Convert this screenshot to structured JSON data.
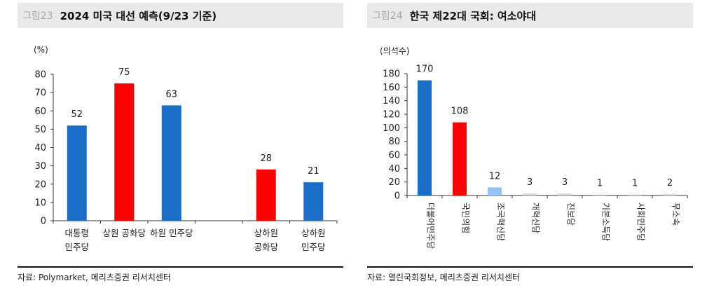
{
  "figures": [
    {
      "number": "그림23",
      "title": "2024 미국 대선 예측(9/23 기준)",
      "unit": "(%)",
      "source": "자료: Polymarket, 메리츠증권 리서치센터"
    },
    {
      "number": "그림24",
      "title": "한국 제22대 국회: 여소야대",
      "unit": "(의석수)",
      "source": "자료: 열린국회정보, 메리츠증권 리서치센터"
    }
  ],
  "chart_data": [
    {
      "type": "bar",
      "title": "2024 미국 대선 예측(9/23 기준)",
      "ylabel": "(%)",
      "xlabel": "",
      "ylim": [
        0,
        80
      ],
      "yticks": [
        0,
        10,
        20,
        30,
        40,
        50,
        60,
        70,
        80
      ],
      "grid": false,
      "legend": null,
      "categories": [
        "대통령 민주당",
        "상원 공화당",
        "하원 민주당",
        "",
        "상하원 공화당",
        "상하원 민주당"
      ],
      "category_lines": [
        [
          "대통령",
          "민주당"
        ],
        [
          "상원 공화당"
        ],
        [
          "하원 민주당"
        ],
        [
          ""
        ],
        [
          "상하원",
          "공화당"
        ],
        [
          "상하원",
          "민주당"
        ]
      ],
      "values": [
        52,
        75,
        63,
        null,
        28,
        21
      ],
      "colors": [
        "#1a6ec8",
        "#ff0000",
        "#1a6ec8",
        null,
        "#ff0000",
        "#1a6ec8"
      ],
      "data_labels": true
    },
    {
      "type": "bar",
      "title": "한국 제22대 국회: 여소야대",
      "ylabel": "(의석수)",
      "xlabel": "",
      "ylim": [
        0,
        180
      ],
      "yticks": [
        0,
        20,
        40,
        60,
        80,
        100,
        120,
        140,
        160,
        180
      ],
      "grid": false,
      "legend": null,
      "categories": [
        "더불어민주당",
        "국민의힘",
        "조국혁신당",
        "개혁신당",
        "진보당",
        "기본소득당",
        "사회민주당",
        "무소속"
      ],
      "values": [
        170,
        108,
        12,
        3,
        3,
        1,
        1,
        2
      ],
      "colors": [
        "#1a6ec8",
        "#ff0000",
        "#94c4f2",
        "#d9d9d9",
        "#d9d9d9",
        "#d9d9d9",
        "#d9d9d9",
        "#d9d9d9"
      ],
      "data_labels": true,
      "label_orientation": "rotated-90"
    }
  ]
}
